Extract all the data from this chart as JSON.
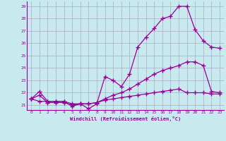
{
  "xlabel": "Windchill (Refroidissement éolien,°C)",
  "x": [
    0,
    1,
    2,
    3,
    4,
    5,
    6,
    7,
    8,
    9,
    10,
    11,
    12,
    13,
    14,
    15,
    16,
    17,
    18,
    19,
    20,
    21,
    22,
    23
  ],
  "line1": [
    21.5,
    22.1,
    21.3,
    21.3,
    21.3,
    20.9,
    21.1,
    20.7,
    21.1,
    23.3,
    23.0,
    22.5,
    23.5,
    25.7,
    26.5,
    27.2,
    28.0,
    28.2,
    29.0,
    29.0,
    27.1,
    26.2,
    25.7,
    25.6
  ],
  "line2": [
    21.5,
    21.8,
    21.2,
    21.2,
    21.2,
    21.0,
    21.1,
    21.1,
    21.2,
    21.5,
    21.8,
    22.0,
    22.3,
    22.7,
    23.1,
    23.5,
    23.8,
    24.0,
    24.2,
    24.5,
    24.5,
    24.2,
    22.1,
    22.0
  ],
  "line3": [
    21.5,
    21.3,
    21.3,
    21.3,
    21.3,
    21.1,
    21.1,
    21.1,
    21.2,
    21.4,
    21.5,
    21.6,
    21.7,
    21.8,
    21.9,
    22.0,
    22.1,
    22.2,
    22.3,
    22.0,
    22.0,
    22.0,
    21.9,
    21.9
  ],
  "line_color": "#990099",
  "bg_color": "#c8eaee",
  "grid_color": "#aaaacc",
  "ylim": [
    20.6,
    29.4
  ],
  "xlim": [
    -0.5,
    23.5
  ],
  "yticks": [
    21,
    22,
    23,
    24,
    25,
    26,
    27,
    28,
    29
  ],
  "xticks": [
    0,
    1,
    2,
    3,
    4,
    5,
    6,
    7,
    8,
    9,
    10,
    11,
    12,
    13,
    14,
    15,
    16,
    17,
    18,
    19,
    20,
    21,
    22,
    23
  ],
  "marker": "+",
  "markersize": 4,
  "linewidth": 0.9
}
